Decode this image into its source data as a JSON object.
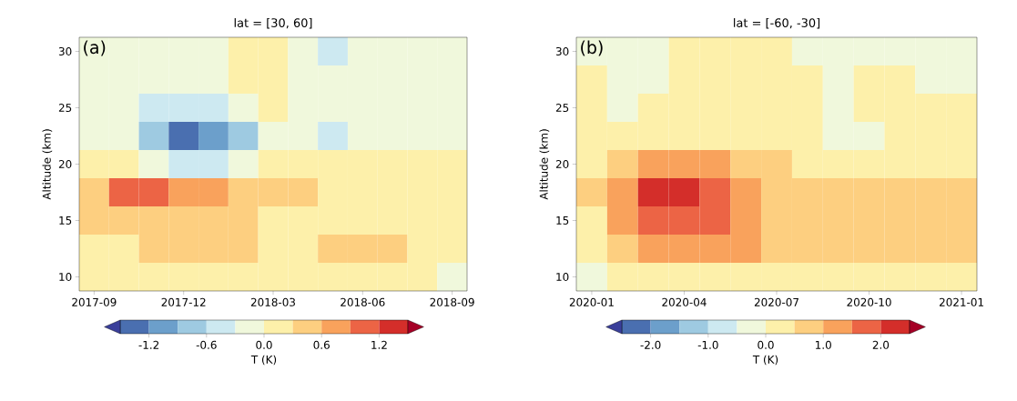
{
  "chart_data": [
    {
      "type": "heatmap",
      "title": "lat = [30, 60]",
      "ylabel": "Altitude (km)",
      "clabel": "T (K)",
      "annotations": [
        "(a)"
      ],
      "categories": [
        "2017-09",
        null,
        null,
        "2017-12",
        null,
        null,
        "2018-03",
        null,
        null,
        "2018-06",
        null,
        null,
        "2018-09"
      ],
      "y_categories": [
        "30",
        null,
        "25",
        null,
        "20",
        null,
        "15",
        null,
        "10"
      ],
      "cells": [
        [
          -0.15,
          -0.15,
          -0.15,
          -0.15,
          -0.15,
          0.15,
          0.15,
          -0.15,
          -0.45,
          -0.15,
          -0.15,
          -0.15,
          -0.15
        ],
        [
          -0.15,
          -0.15,
          -0.15,
          -0.15,
          -0.15,
          0.15,
          0.15,
          -0.15,
          -0.15,
          -0.15,
          -0.15,
          -0.15,
          -0.15
        ],
        [
          -0.15,
          -0.15,
          -0.45,
          -0.45,
          -0.45,
          -0.15,
          0.15,
          -0.15,
          -0.15,
          -0.15,
          -0.15,
          -0.15,
          -0.15
        ],
        [
          -0.15,
          -0.15,
          -0.75,
          -1.35,
          -1.05,
          -0.75,
          -0.15,
          -0.15,
          -0.45,
          -0.15,
          -0.15,
          -0.15,
          -0.15
        ],
        [
          0.15,
          0.15,
          -0.15,
          -0.45,
          -0.45,
          -0.15,
          0.15,
          0.15,
          0.15,
          0.15,
          0.15,
          0.15,
          0.15
        ],
        [
          0.45,
          1.05,
          1.05,
          0.75,
          0.75,
          0.45,
          0.45,
          0.45,
          0.15,
          0.15,
          0.15,
          0.15,
          0.15
        ],
        [
          0.45,
          0.45,
          0.45,
          0.45,
          0.45,
          0.45,
          0.15,
          0.15,
          0.15,
          0.15,
          0.15,
          0.15,
          0.15
        ],
        [
          0.15,
          0.15,
          0.45,
          0.45,
          0.45,
          0.45,
          0.15,
          0.15,
          0.45,
          0.45,
          0.45,
          0.15,
          0.15
        ],
        [
          0.15,
          0.15,
          0.15,
          0.15,
          0.15,
          0.15,
          0.15,
          0.15,
          0.15,
          0.15,
          0.15,
          0.15,
          -0.15
        ]
      ],
      "clim": [
        -1.5,
        1.5
      ],
      "cticks": [
        {
          "value": -1.2,
          "label": "-1.2"
        },
        {
          "value": -0.6,
          "label": "-0.6"
        },
        {
          "value": 0,
          "label": "0.0"
        },
        {
          "value": 0.6,
          "label": "0.6"
        },
        {
          "value": 1.2,
          "label": "1.2"
        }
      ]
    },
    {
      "type": "heatmap",
      "title": "lat = [-60, -30]",
      "ylabel": "Altitude (km)",
      "clabel": "T (K)",
      "annotations": [
        "(b)"
      ],
      "categories": [
        "2020-01",
        null,
        null,
        "2020-04",
        null,
        null,
        "2020-07",
        null,
        null,
        "2020-10",
        null,
        null,
        "2021-01"
      ],
      "y_categories": [
        "30",
        null,
        "25",
        null,
        "20",
        null,
        "15",
        null,
        "10"
      ],
      "cells": [
        [
          -0.25,
          -0.25,
          -0.25,
          0.25,
          0.25,
          0.25,
          0.25,
          -0.25,
          -0.25,
          -0.25,
          -0.25,
          -0.25,
          -0.25
        ],
        [
          0.25,
          -0.25,
          -0.25,
          0.25,
          0.25,
          0.25,
          0.25,
          0.25,
          -0.25,
          0.25,
          0.25,
          -0.25,
          -0.25
        ],
        [
          0.25,
          -0.25,
          0.25,
          0.25,
          0.25,
          0.25,
          0.25,
          0.25,
          -0.25,
          0.25,
          0.25,
          0.25,
          0.25
        ],
        [
          0.25,
          0.25,
          0.25,
          0.25,
          0.25,
          0.25,
          0.25,
          0.25,
          -0.25,
          -0.25,
          0.25,
          0.25,
          0.25
        ],
        [
          0.25,
          0.75,
          1.25,
          1.25,
          1.25,
          0.75,
          0.75,
          0.25,
          0.25,
          0.25,
          0.25,
          0.25,
          0.25
        ],
        [
          0.75,
          1.25,
          2.25,
          2.25,
          1.75,
          1.25,
          0.75,
          0.75,
          0.75,
          0.75,
          0.75,
          0.75,
          0.75
        ],
        [
          0.25,
          1.25,
          1.75,
          1.75,
          1.75,
          1.25,
          0.75,
          0.75,
          0.75,
          0.75,
          0.75,
          0.75,
          0.75
        ],
        [
          0.25,
          0.75,
          1.25,
          1.25,
          1.25,
          1.25,
          0.75,
          0.75,
          0.75,
          0.75,
          0.75,
          0.75,
          0.75
        ],
        [
          -0.25,
          0.25,
          0.25,
          0.25,
          0.25,
          0.25,
          0.25,
          0.25,
          0.25,
          0.25,
          0.25,
          0.25,
          0.25
        ]
      ],
      "clim": [
        -2.5,
        2.5
      ],
      "cticks": [
        {
          "value": -2,
          "label": "-2.0"
        },
        {
          "value": -1,
          "label": "-1.0"
        },
        {
          "value": 0,
          "label": "0.0"
        },
        {
          "value": 1,
          "label": "1.0"
        },
        {
          "value": 2,
          "label": "2.0"
        }
      ]
    }
  ]
}
